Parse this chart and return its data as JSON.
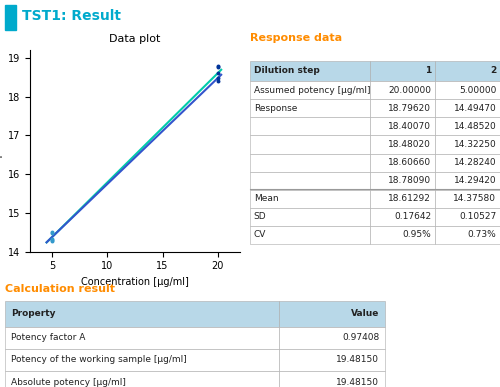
{
  "title": "TST1: Result",
  "title_color": "#00AACC",
  "title_icon_color": "#00AACC",
  "plot_title": "Data plot",
  "xlabel": "Concentration [µg/ml]",
  "ylabel": "Response",
  "xlim": [
    3,
    22
  ],
  "ylim": [
    14.0,
    19.2
  ],
  "xticks": [
    5,
    10,
    15,
    20
  ],
  "yticks": [
    14,
    15,
    16,
    17,
    18,
    19
  ],
  "conc1": 5.0,
  "conc2": 20.0,
  "responses1": [
    18.7962,
    18.4007,
    18.4802,
    18.6066,
    18.7809
  ],
  "responses2": [
    14.4947,
    14.4852,
    14.3225,
    14.2824,
    14.2942
  ],
  "mean1": 18.61292,
  "mean2": 14.3758,
  "sd1": 0.17642,
  "sd2": 0.10527,
  "cv1": "0.95%",
  "cv2": "0.73%",
  "assumed_potency1": "20.00000",
  "assumed_potency2": "5.00000",
  "line1_color": "#00CCAA",
  "line2_color": "#3355CC",
  "dot1_color": "#003399",
  "dot2_color": "#3399CC",
  "calc_properties": [
    "Potency factor A",
    "Potency of the working sample [µg/ml]",
    "Absolute potency [µg/ml]"
  ],
  "calc_values": [
    "0.97408",
    "19.48150",
    "19.48150"
  ],
  "response_data_title": "Response data",
  "response_data_color": "#FF8C00",
  "calc_result_title": "Calculation result",
  "calc_result_color": "#FF8C00",
  "table_header_bg": "#B8D8E8",
  "table_cell_bg": "#FFFFFF",
  "bg_color": "#FFFFFF"
}
